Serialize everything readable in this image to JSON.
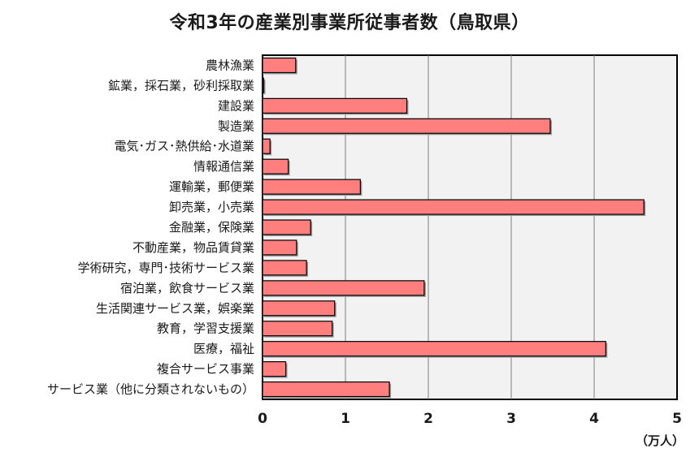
{
  "chart_data": {
    "type": "bar",
    "orientation": "horizontal",
    "title": "令和3年の産業別事業所従事者数（鳥取県）",
    "unit": "（万人）",
    "xlim": [
      0,
      5
    ],
    "xticks": [
      "0",
      "1",
      "2",
      "3",
      "4",
      "5"
    ],
    "grid": true,
    "colors": {
      "bar": "#ff7f7f",
      "plot_bg": "#f2f2f2",
      "grid": "#7f7f7f"
    },
    "categories": [
      "農林漁業",
      "鉱業，採石業，砂利採取業",
      "建設業",
      "製造業",
      "電気･ガス･熱供給･水道業",
      "情報通信業",
      "運輸業，郵便業",
      "卸売業，小売業",
      "金融業，保険業",
      "不動産業，物品賃貸業",
      "学術研究，専門･技術サービス業",
      "宿泊業，飲食サービス業",
      "生活関連サービス業，娯楽業",
      "教育，学習支援業",
      "医療，福祉",
      "複合サービス事業",
      "サービス業（他に分類されないもの）"
    ],
    "values": [
      0.4,
      0.01,
      1.74,
      3.47,
      0.09,
      0.31,
      1.18,
      4.6,
      0.58,
      0.41,
      0.53,
      1.95,
      0.87,
      0.84,
      4.14,
      0.28,
      1.53
    ]
  }
}
